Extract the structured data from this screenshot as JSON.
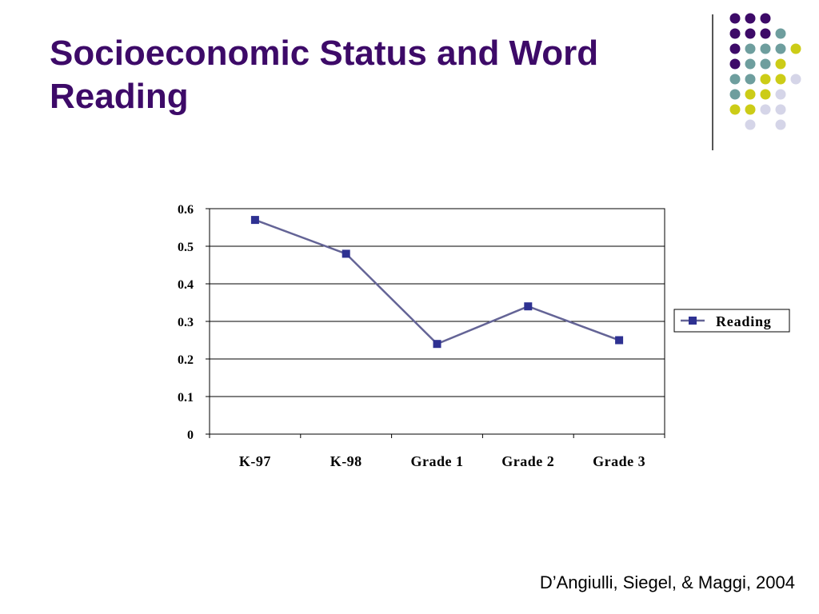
{
  "slide": {
    "title": "Socioeconomic Status and Word Reading",
    "citation": "D’Angiulli, Siegel, & Maggi, 2004"
  },
  "theme": {
    "title_color": "#3d0a68",
    "dot_colors": {
      "purple": "#3d0a68",
      "teal": "#6e9e9e",
      "yellow": "#cccc17",
      "lavender": "#d5d5e8"
    },
    "decoration": "dot-grid",
    "dot_rows": [
      [
        "purple",
        "purple",
        "purple",
        "",
        "",
        ""
      ],
      [
        "purple",
        "purple",
        "purple",
        "teal",
        "",
        ""
      ],
      [
        "purple",
        "teal",
        "teal",
        "teal",
        "yellow",
        ""
      ],
      [
        "purple",
        "teal",
        "teal",
        "yellow",
        "",
        ""
      ],
      [
        "teal",
        "teal",
        "yellow",
        "yellow",
        "lavender",
        ""
      ],
      [
        "teal",
        "yellow",
        "yellow",
        "lavender",
        "",
        ""
      ],
      [
        "yellow",
        "yellow",
        "lavender",
        "lavender",
        "",
        ""
      ],
      [
        "",
        "lavender",
        "",
        "lavender",
        "",
        ""
      ]
    ]
  },
  "chart_data": {
    "type": "line",
    "categories": [
      "K-97",
      "K-98",
      "Grade 1",
      "Grade 2",
      "Grade 3"
    ],
    "series": [
      {
        "name": "Reading",
        "values": [
          0.57,
          0.48,
          0.24,
          0.34,
          0.25
        ],
        "color": "#646496",
        "marker_color": "#2e3192"
      }
    ],
    "ylim": [
      0,
      0.6
    ],
    "yticks": [
      "0",
      "0.1",
      "0.2",
      "0.3",
      "0.4",
      "0.5",
      "0.6"
    ],
    "grid": true,
    "legend_position": "right",
    "xlabel": "",
    "ylabel": ""
  }
}
